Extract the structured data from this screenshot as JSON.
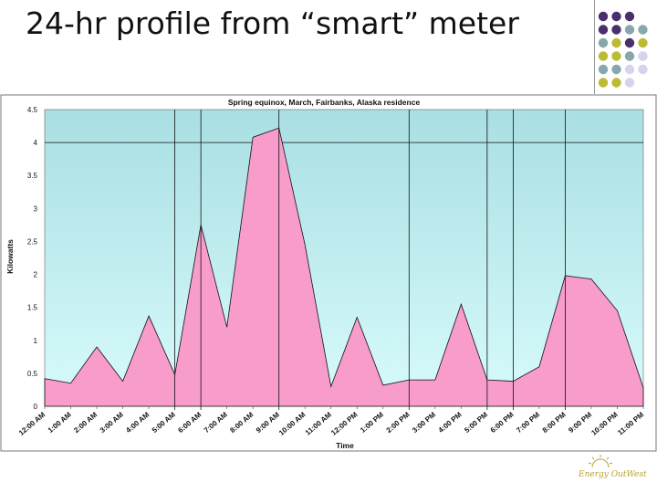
{
  "slide": {
    "title": "24-hr profile from “smart” meter",
    "logo_text": "Energy OutWest"
  },
  "decor": {
    "dot_grid": [
      [
        "purple",
        "purple",
        "purple",
        "none"
      ],
      [
        "purple",
        "purple",
        "teal",
        "teal"
      ],
      [
        "teal",
        "yellow",
        "purple",
        "yellow"
      ],
      [
        "yellow",
        "yellow",
        "teal",
        "lavender"
      ],
      [
        "teal",
        "teal",
        "lavender",
        "lavender"
      ],
      [
        "yellow",
        "yellow",
        "lavender",
        "none"
      ]
    ],
    "colors": {
      "purple": "#4a2f6e",
      "teal": "#88a7aa",
      "yellow": "#bdbb33",
      "lavender": "#d6d4ec"
    },
    "logo_color": "#b8a230"
  },
  "chart_data": {
    "type": "area",
    "title": "Spring equinox, March, Fairbanks, Alaska residence",
    "xlabel": "Time",
    "ylabel": "Kilowatts",
    "ylim": [
      0,
      4.5
    ],
    "yticks": [
      "0",
      "0.5",
      "1",
      "1.5",
      "2",
      "2.5",
      "3",
      "3.5",
      "4",
      "4.5"
    ],
    "gridline_y": 4,
    "categories": [
      "12:00 AM",
      "1:00 AM",
      "2:00 AM",
      "3:00 AM",
      "4:00 AM",
      "5:00 AM",
      "6:00 AM",
      "7:00 AM",
      "8:00 AM",
      "9:00 AM",
      "10:00 AM",
      "11:00 AM",
      "12:00 PM",
      "1:00 PM",
      "2:00 PM",
      "3:00 PM",
      "4:00 PM",
      "5:00 PM",
      "6:00 PM",
      "7:00 PM",
      "8:00 PM",
      "9:00 PM",
      "10:00 PM",
      "11:00 PM"
    ],
    "points": [
      [
        0,
        0.42
      ],
      [
        1,
        0.35
      ],
      [
        2,
        0.9
      ],
      [
        3,
        0.38
      ],
      [
        4,
        1.37
      ],
      [
        5,
        0.48
      ],
      [
        5.001,
        0.48
      ],
      [
        6,
        2.75
      ],
      [
        7,
        1.2
      ],
      [
        8,
        4.08
      ],
      [
        9,
        4.22
      ],
      [
        10,
        2.45
      ],
      [
        11,
        0.3
      ],
      [
        12,
        1.35
      ],
      [
        13,
        0.32
      ],
      [
        14,
        0.4
      ],
      [
        15,
        0.4
      ],
      [
        16,
        1.55
      ],
      [
        17,
        0.4
      ],
      [
        18,
        0.38
      ],
      [
        19,
        0.6
      ],
      [
        20,
        1.98
      ],
      [
        21,
        1.93
      ],
      [
        22,
        1.45
      ],
      [
        23,
        0.28
      ]
    ],
    "vertical_markers": [
      5,
      6,
      9,
      14,
      17,
      18,
      20
    ],
    "colors": {
      "fill": "#f79ccb",
      "line": "#111111",
      "bg_top": "#a9dfe3",
      "bg_bottom": "#d8fbfc"
    }
  }
}
